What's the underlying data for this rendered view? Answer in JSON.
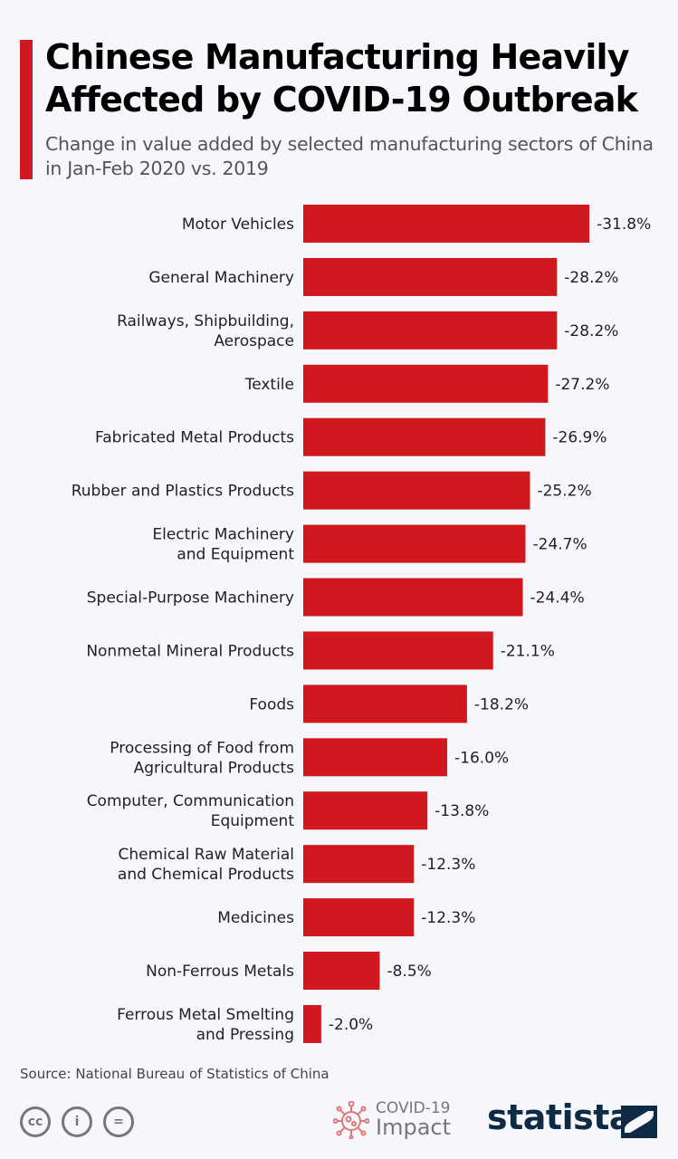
{
  "header": {
    "title": "Chinese Manufacturing Heavily Affected by COVID-19 Outbreak",
    "subtitle": "Change in value added by selected manufacturing sectors of China in Jan-Feb 2020 vs. 2019"
  },
  "colors": {
    "bar": "#d0191f",
    "accent": "#d0191f",
    "brand": "#0f2a44"
  },
  "chart_data": {
    "type": "bar",
    "orientation": "horizontal",
    "title": "Chinese Manufacturing Heavily Affected by COVID-19 Outbreak",
    "subtitle": "Change in value added by selected manufacturing sectors of China in Jan-Feb 2020 vs. 2019",
    "xlabel": "",
    "ylabel": "",
    "unit": "%",
    "grid": false,
    "categories": [
      [
        "Motor Vehicles"
      ],
      [
        "General Machinery"
      ],
      [
        "Railways, Shipbuilding,",
        "Aerospace"
      ],
      [
        "Textile"
      ],
      [
        "Fabricated Metal Products"
      ],
      [
        "Rubber and Plastics Products"
      ],
      [
        "Electric Machinery",
        "and Equipment"
      ],
      [
        "Special-Purpose Machinery"
      ],
      [
        "Nonmetal Mineral Products"
      ],
      [
        "Foods"
      ],
      [
        "Processing of Food from",
        "Agricultural Products"
      ],
      [
        "Computer, Communication",
        "Equipment"
      ],
      [
        "Chemical Raw Material",
        "and Chemical Products"
      ],
      [
        "Medicines"
      ],
      [
        "Non-Ferrous Metals"
      ],
      [
        "Ferrous Metal Smelting",
        "and Pressing"
      ]
    ],
    "values": [
      -31.8,
      -28.2,
      -28.2,
      -27.2,
      -26.9,
      -25.2,
      -24.7,
      -24.4,
      -21.1,
      -18.2,
      -16.0,
      -13.8,
      -12.3,
      -12.3,
      -8.5,
      -2.0
    ],
    "labels": [
      "-31.8%",
      "-28.2%",
      "-28.2%",
      "-27.2%",
      "-26.9%",
      "-25.2%",
      "-24.7%",
      "-24.4%",
      "-21.1%",
      "-18.2%",
      "-16.0%",
      "-13.8%",
      "-12.3%",
      "-12.3%",
      "-8.5%",
      "-2.0%"
    ],
    "xlim": [
      0,
      -35
    ]
  },
  "footer": {
    "source": "Source: National Bureau of Statistics of China",
    "license_icons": [
      "cc",
      "by",
      "nd"
    ],
    "license_glyphs": [
      "cc",
      "i",
      "="
    ],
    "badge_line1": "COVID-19",
    "badge_line2": "Impact",
    "brand": "statista"
  }
}
